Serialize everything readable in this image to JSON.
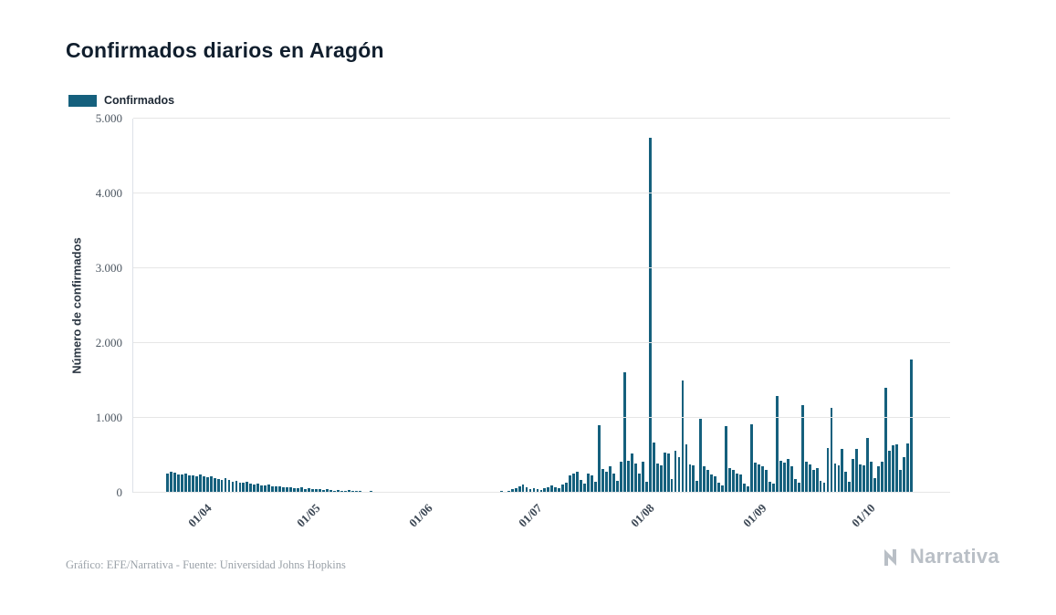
{
  "chart_data": {
    "type": "bar",
    "title": "Confirmados diarios en Aragón",
    "xlabel": "",
    "ylabel": "Número de confirmados",
    "legend_label": "Confirmados",
    "legend_position": "top-left",
    "grid": "horizontal",
    "point_interval": "daily",
    "bar_color": "#15607d",
    "ylim": [
      0,
      5000
    ],
    "y_ticks": [
      {
        "value": 0,
        "label": "0"
      },
      {
        "value": 1000,
        "label": "1.000"
      },
      {
        "value": 2000,
        "label": "2.000"
      },
      {
        "value": 3000,
        "label": "3.000"
      },
      {
        "value": 4000,
        "label": "4.000"
      },
      {
        "value": 5000,
        "label": "5.000"
      }
    ],
    "x_ticks": [
      {
        "label": "01/04",
        "index": 9
      },
      {
        "label": "01/05",
        "index": 39
      },
      {
        "label": "01/06",
        "index": 70
      },
      {
        "label": "01/07",
        "index": 100
      },
      {
        "label": "01/08",
        "index": 131
      },
      {
        "label": "01/09",
        "index": 162
      },
      {
        "label": "01/10",
        "index": 192
      }
    ],
    "values": [
      260,
      285,
      270,
      250,
      240,
      255,
      230,
      235,
      225,
      240,
      220,
      210,
      225,
      200,
      185,
      175,
      190,
      165,
      150,
      160,
      140,
      130,
      145,
      120,
      110,
      120,
      100,
      95,
      105,
      90,
      80,
      90,
      75,
      70,
      78,
      65,
      60,
      68,
      55,
      60,
      50,
      55,
      45,
      40,
      48,
      35,
      30,
      38,
      28,
      25,
      32,
      22,
      20,
      26,
      18,
      16,
      22,
      15,
      14,
      18,
      12,
      10,
      15,
      10,
      9,
      12,
      8,
      7,
      10,
      8,
      6,
      9,
      5,
      7,
      10,
      6,
      5,
      8,
      6,
      12,
      7,
      5,
      9,
      6,
      14,
      8,
      6,
      10,
      7,
      16,
      9,
      12,
      20,
      14,
      30,
      45,
      60,
      80,
      105,
      70,
      55,
      65,
      45,
      35,
      60,
      75,
      95,
      70,
      60,
      110,
      130,
      230,
      255,
      280,
      175,
      120,
      255,
      235,
      150,
      900,
      320,
      280,
      350,
      260,
      160,
      420,
      1610,
      430,
      520,
      395,
      260,
      410,
      150,
      4750,
      670,
      390,
      360,
      540,
      520,
      180,
      560,
      480,
      1500,
      650,
      380,
      370,
      160,
      990,
      350,
      300,
      250,
      220,
      130,
      100,
      890,
      330,
      310,
      260,
      240,
      120,
      90,
      920,
      400,
      380,
      350,
      300,
      150,
      120,
      1290,
      430,
      400,
      450,
      350,
      180,
      140,
      1170,
      420,
      380,
      300,
      330,
      160,
      130,
      600,
      1140,
      390,
      360,
      580,
      280,
      150,
      450,
      580,
      380,
      360,
      730,
      420,
      200,
      350,
      420,
      1400,
      560,
      630,
      650,
      300,
      480,
      660,
      1775
    ]
  },
  "footer": {
    "credits": "Gráfico: EFE/Narrativa - Fuente: Universidad Johns Hopkins",
    "brand": "Narrativa"
  }
}
